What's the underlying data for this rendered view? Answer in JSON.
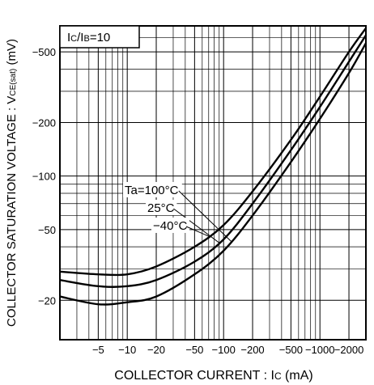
{
  "chart_data": {
    "type": "line",
    "title": "",
    "xlabel_main": "COLLECTOR  CURRENT : I",
    "xlabel_sub": "C",
    "xlabel_unit": " (mA)",
    "ylabel_main": "COLLECTOR  SATURATION  VOLTAGE : V",
    "ylabel_sub": "CE(sat)",
    "ylabel_unit": " (mV)",
    "x_scale": "log",
    "y_scale": "log",
    "xlim": [
      -2,
      -3000
    ],
    "ylim": [
      -12,
      -700
    ],
    "x_ticks": [
      -5,
      -10,
      -20,
      -50,
      -100,
      -200,
      -500,
      -1000,
      -2000
    ],
    "x_tick_labels": [
      "−5",
      "−10",
      "−20",
      "−50",
      "−100",
      "−200",
      "−500",
      "−1000",
      "−2000"
    ],
    "y_ticks": [
      -20,
      -50,
      -100,
      -200,
      -500
    ],
    "y_tick_labels": [
      "−20",
      "−50",
      "−100",
      "−200",
      "−500"
    ],
    "grid": true,
    "condition_label": {
      "pre": "I",
      "pre_sub": "C",
      "mid": "/I",
      "mid_sub": "B",
      "post": "=10"
    },
    "series": [
      {
        "name": "Ta=100°C",
        "x": [
          -2,
          -5,
          -10,
          -20,
          -50,
          -100,
          -200,
          -500,
          -1000,
          -2000,
          -3000
        ],
        "y": [
          -21,
          -19,
          -19.5,
          -21,
          -28,
          -38,
          -60,
          -120,
          -210,
          -380,
          -560
        ]
      },
      {
        "name": "25°C",
        "x": [
          -2,
          -5,
          -10,
          -20,
          -50,
          -100,
          -200,
          -500,
          -1000,
          -2000,
          -3000
        ],
        "y": [
          -26,
          -24,
          -24,
          -26,
          -33,
          -44,
          -70,
          -140,
          -245,
          -440,
          -620
        ]
      },
      {
        "name": "−40°C",
        "x": [
          -2,
          -5,
          -10,
          -20,
          -50,
          -100,
          -200,
          -500,
          -1000,
          -2000,
          -3000
        ],
        "y": [
          -29,
          -28,
          -28,
          -31,
          -40,
          -53,
          -82,
          -160,
          -280,
          -500,
          -680
        ]
      }
    ]
  }
}
